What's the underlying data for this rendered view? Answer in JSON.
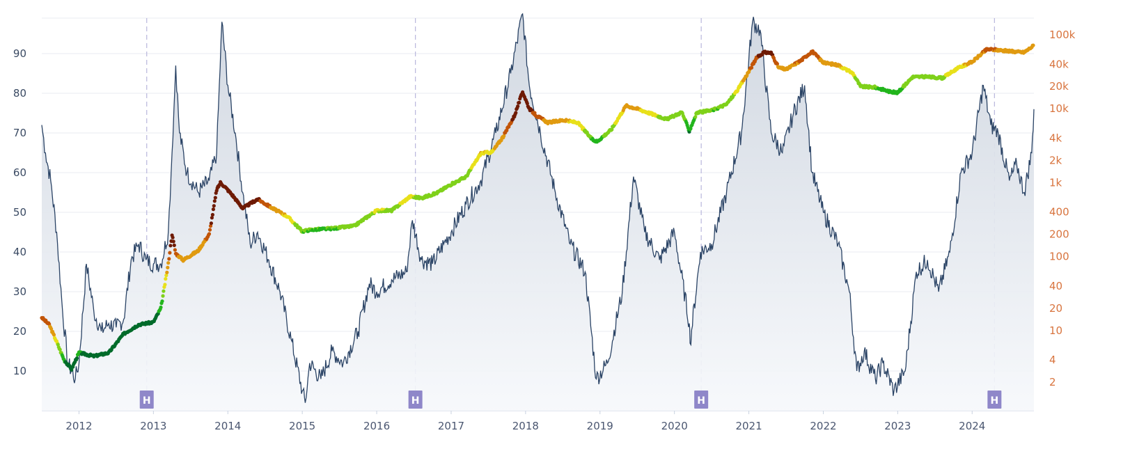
{
  "chart_data": {
    "type": "line",
    "title": "",
    "xlabel": "",
    "ylabel": "",
    "x_ticks": [
      "2012",
      "2013",
      "2014",
      "2015",
      "2016",
      "2017",
      "2018",
      "2019",
      "2020",
      "2021",
      "2022",
      "2023",
      "2024"
    ],
    "xlim": [
      2011.5,
      2024.83
    ],
    "y_left": {
      "ticks": [
        "10",
        "20",
        "30",
        "40",
        "50",
        "60",
        "70",
        "80",
        "90"
      ],
      "range": [
        0,
        100
      ]
    },
    "y_right": {
      "scale": "log",
      "ticks": [
        "2",
        "4",
        "10",
        "20",
        "40",
        "100",
        "200",
        "400",
        "1k",
        "2k",
        "4k",
        "10k",
        "20k",
        "40k",
        "100k"
      ],
      "tick_values": [
        2,
        4,
        10,
        20,
        40,
        100,
        200,
        400,
        1000,
        2000,
        4000,
        10000,
        20000,
        40000,
        100000
      ],
      "range": [
        1,
        130000
      ]
    },
    "grid": true,
    "legend": "none",
    "halvings": {
      "label": "H",
      "x": [
        2012.91,
        2016.52,
        2020.36,
        2024.3
      ]
    },
    "oscillator_series": {
      "axis": "left",
      "color": "#2a4365",
      "area_fill": "#e2e6ec",
      "x": [
        2011.5,
        2011.55,
        2011.62,
        2011.7,
        2011.78,
        2011.85,
        2011.95,
        2012.0,
        2012.1,
        2012.2,
        2012.3,
        2012.4,
        2012.5,
        2012.6,
        2012.7,
        2012.8,
        2012.9,
        2013.0,
        2013.1,
        2013.2,
        2013.25,
        2013.3,
        2013.35,
        2013.45,
        2013.6,
        2013.75,
        2013.85,
        2013.92,
        2014.0,
        2014.1,
        2014.2,
        2014.3,
        2014.4,
        2014.55,
        2014.7,
        2014.85,
        2015.0,
        2015.04,
        2015.1,
        2015.25,
        2015.4,
        2015.55,
        2015.75,
        2015.9,
        2016.0,
        2016.2,
        2016.4,
        2016.48,
        2016.6,
        2016.75,
        2016.9,
        2017.0,
        2017.2,
        2017.4,
        2017.6,
        2017.8,
        2017.96,
        2018.05,
        2018.2,
        2018.4,
        2018.6,
        2018.8,
        2018.95,
        2019.1,
        2019.3,
        2019.45,
        2019.6,
        2019.8,
        2020.0,
        2020.2,
        2020.21,
        2020.35,
        2020.5,
        2020.7,
        2020.9,
        2021.05,
        2021.15,
        2021.3,
        2021.45,
        2021.6,
        2021.75,
        2021.85,
        2022.0,
        2022.2,
        2022.35,
        2022.45,
        2022.55,
        2022.7,
        2022.8,
        2022.95,
        2023.1,
        2023.25,
        2023.4,
        2023.55,
        2023.7,
        2023.85,
        2024.0,
        2024.15,
        2024.25,
        2024.35,
        2024.5,
        2024.6,
        2024.7,
        2024.8,
        2024.83
      ],
      "values": [
        72,
        65,
        58,
        45,
        25,
        12,
        8,
        12,
        37,
        25,
        20,
        22,
        21,
        23,
        38,
        42,
        38,
        37,
        37,
        45,
        65,
        87,
        70,
        60,
        55,
        58,
        65,
        98,
        82,
        70,
        55,
        42,
        45,
        38,
        30,
        18,
        5,
        2,
        12,
        8,
        15,
        12,
        20,
        32,
        30,
        33,
        35,
        48,
        38,
        37,
        42,
        45,
        52,
        58,
        70,
        85,
        100,
        82,
        70,
        55,
        42,
        35,
        8,
        12,
        30,
        59,
        45,
        38,
        45,
        22,
        17,
        40,
        42,
        55,
        70,
        98,
        96,
        70,
        65,
        75,
        82,
        60,
        50,
        42,
        30,
        10,
        15,
        8,
        12,
        5,
        10,
        35,
        38,
        30,
        40,
        60,
        65,
        82,
        72,
        70,
        58,
        62,
        55,
        65,
        76
      ]
    },
    "price_series": {
      "axis": "right",
      "x": [
        2011.5,
        2011.6,
        2011.7,
        2011.8,
        2011.9,
        2012.0,
        2012.2,
        2012.4,
        2012.6,
        2012.8,
        2013.0,
        2013.1,
        2013.2,
        2013.25,
        2013.3,
        2013.4,
        2013.6,
        2013.75,
        2013.85,
        2013.9,
        2013.95,
        2014.05,
        2014.2,
        2014.4,
        2014.6,
        2014.8,
        2015.0,
        2015.1,
        2015.4,
        2015.7,
        2015.9,
        2016.0,
        2016.2,
        2016.45,
        2016.6,
        2016.8,
        2017.0,
        2017.2,
        2017.4,
        2017.55,
        2017.7,
        2017.85,
        2017.96,
        2018.05,
        2018.15,
        2018.3,
        2018.5,
        2018.7,
        2018.9,
        2018.96,
        2019.15,
        2019.35,
        2019.5,
        2019.7,
        2019.9,
        2020.1,
        2020.2,
        2020.3,
        2020.5,
        2020.7,
        2020.85,
        2021.0,
        2021.1,
        2021.2,
        2021.3,
        2021.4,
        2021.5,
        2021.7,
        2021.85,
        2022.0,
        2022.2,
        2022.4,
        2022.5,
        2022.7,
        2022.9,
        2023.0,
        2023.2,
        2023.4,
        2023.6,
        2023.8,
        2024.0,
        2024.2,
        2024.3,
        2024.5,
        2024.7,
        2024.83
      ],
      "values": [
        15,
        12,
        7,
        4,
        3,
        5,
        4.5,
        5,
        9,
        12,
        13,
        20,
        80,
        200,
        110,
        90,
        120,
        200,
        800,
        1000,
        900,
        700,
        450,
        600,
        450,
        350,
        220,
        230,
        240,
        260,
        360,
        420,
        420,
        650,
        620,
        720,
        950,
        1200,
        2500,
        2600,
        4200,
        8000,
        17000,
        10000,
        8000,
        6500,
        7000,
        6500,
        3800,
        3600,
        5200,
        11000,
        10000,
        8500,
        7200,
        9000,
        5000,
        8800,
        9500,
        11500,
        18000,
        32000,
        48000,
        58000,
        57000,
        36000,
        34000,
        45000,
        60000,
        42000,
        39000,
        30000,
        20000,
        19500,
        17000,
        16500,
        27000,
        27000,
        26000,
        35000,
        43000,
        64000,
        63000,
        60000,
        58000,
        72000
      ]
    },
    "price_color_scale": [
      "#006b2a",
      "#22b51c",
      "#7fd11a",
      "#e8e01a",
      "#e09a10",
      "#c25508",
      "#6e1a04"
    ]
  }
}
